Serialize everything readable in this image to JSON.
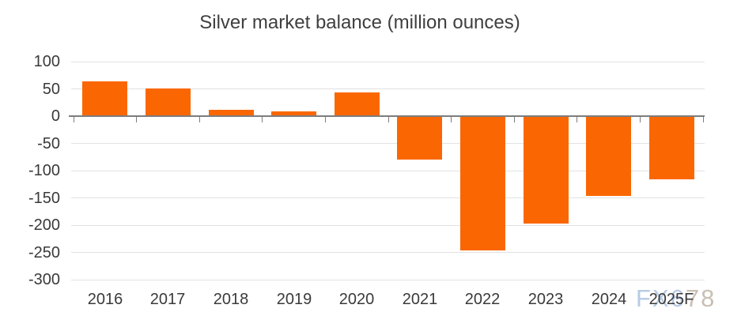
{
  "chart_data": {
    "type": "bar",
    "title": "Silver market balance (million ounces)",
    "categories": [
      "2016",
      "2017",
      "2018",
      "2019",
      "2020",
      "2021",
      "2022",
      "2023",
      "2024",
      "2025F"
    ],
    "values": [
      64,
      51,
      12,
      9,
      44,
      -79,
      -246,
      -197,
      -146,
      -116
    ],
    "xlabel": "",
    "ylabel": "",
    "ylim": [
      -300,
      100
    ],
    "yticks": [
      100,
      50,
      0,
      -50,
      -100,
      -150,
      -200,
      -250,
      -300
    ],
    "grid": true,
    "legend": "none",
    "bar_color": "#fa6702",
    "gridline_color": "#e2e2e2",
    "axis_color": "#7d7d7d",
    "text_color": "#3a3a3a",
    "title_color": "#3f3f3f"
  },
  "watermark": {
    "primary": "FX6",
    "secondary": "78",
    "primary_color": "#b7cbe6",
    "secondary_color": "#c9bfb3"
  }
}
